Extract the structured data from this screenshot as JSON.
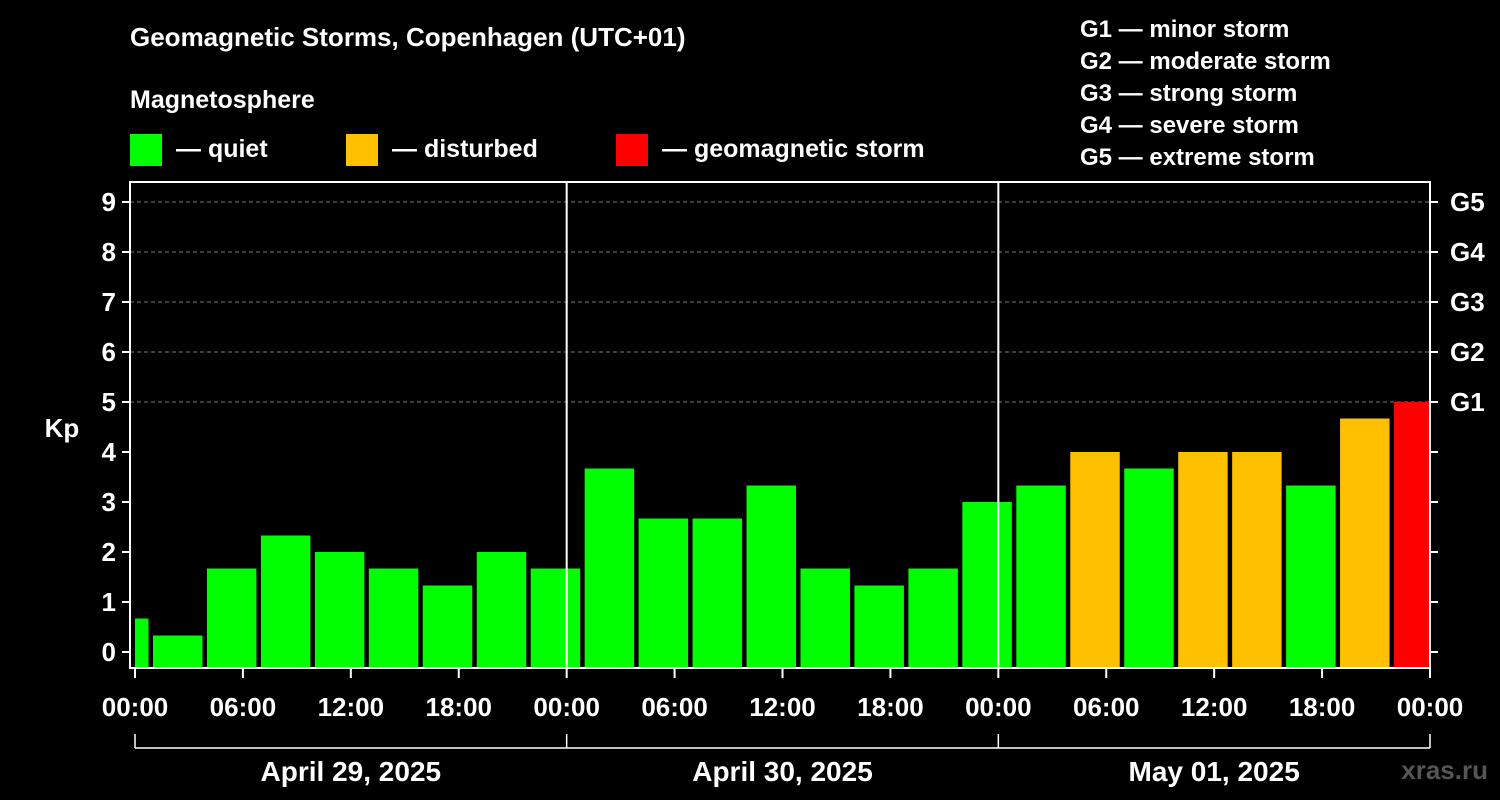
{
  "header": {
    "title": "Geomagnetic Storms, Copenhagen (UTC+01)",
    "subtitle": "Magnetosphere"
  },
  "legend": [
    {
      "label": "— quiet",
      "color": "#00ff00"
    },
    {
      "label": "— disturbed",
      "color": "#ffc000"
    },
    {
      "label": "— geomagnetic storm",
      "color": "#ff0000"
    }
  ],
  "storm_scale": [
    "G1 — minor storm",
    "G2 — moderate storm",
    "G3 — strong storm",
    "G4 — severe storm",
    "G5 — extreme storm"
  ],
  "watermark": "xras.ru",
  "chart_data": {
    "type": "bar",
    "ylabel": "Kp",
    "ylim": [
      0,
      9
    ],
    "y_ticks": [
      0,
      1,
      2,
      3,
      4,
      5,
      6,
      7,
      8,
      9
    ],
    "right_axis_ticks": [
      {
        "value": 5,
        "label": "G1"
      },
      {
        "value": 6,
        "label": "G2"
      },
      {
        "value": 7,
        "label": "G3"
      },
      {
        "value": 8,
        "label": "G4"
      },
      {
        "value": 9,
        "label": "G5"
      }
    ],
    "x_tick_labels": [
      "00:00",
      "06:00",
      "12:00",
      "18:00",
      "00:00",
      "06:00",
      "12:00",
      "18:00",
      "00:00",
      "06:00",
      "12:00",
      "18:00",
      "00:00"
    ],
    "days": [
      "April 29, 2025",
      "April 30, 2025",
      "May 01, 2025"
    ],
    "grid": "horizontal dashed at Kp 5–9",
    "bars": [
      {
        "start": "2025-04-29 00:00",
        "end": "2025-04-29 00:45",
        "kp": 0.67,
        "status": "quiet"
      },
      {
        "start": "2025-04-29 01:00",
        "end": "2025-04-29 03:45",
        "kp": 0.33,
        "status": "quiet"
      },
      {
        "start": "2025-04-29 04:00",
        "end": "2025-04-29 06:45",
        "kp": 1.67,
        "status": "quiet"
      },
      {
        "start": "2025-04-29 07:00",
        "end": "2025-04-29 09:45",
        "kp": 2.33,
        "status": "quiet"
      },
      {
        "start": "2025-04-29 10:00",
        "end": "2025-04-29 12:45",
        "kp": 2.0,
        "status": "quiet"
      },
      {
        "start": "2025-04-29 13:00",
        "end": "2025-04-29 15:45",
        "kp": 1.67,
        "status": "quiet"
      },
      {
        "start": "2025-04-29 16:00",
        "end": "2025-04-29 18:45",
        "kp": 1.33,
        "status": "quiet"
      },
      {
        "start": "2025-04-29 19:00",
        "end": "2025-04-29 21:45",
        "kp": 2.0,
        "status": "quiet"
      },
      {
        "start": "2025-04-29 22:00",
        "end": "2025-04-30 00:45",
        "kp": 1.67,
        "status": "quiet"
      },
      {
        "start": "2025-04-30 01:00",
        "end": "2025-04-30 03:45",
        "kp": 3.67,
        "status": "quiet"
      },
      {
        "start": "2025-04-30 04:00",
        "end": "2025-04-30 06:45",
        "kp": 2.67,
        "status": "quiet"
      },
      {
        "start": "2025-04-30 07:00",
        "end": "2025-04-30 09:45",
        "kp": 2.67,
        "status": "quiet"
      },
      {
        "start": "2025-04-30 10:00",
        "end": "2025-04-30 12:45",
        "kp": 3.33,
        "status": "quiet"
      },
      {
        "start": "2025-04-30 13:00",
        "end": "2025-04-30 15:45",
        "kp": 1.67,
        "status": "quiet"
      },
      {
        "start": "2025-04-30 16:00",
        "end": "2025-04-30 18:45",
        "kp": 1.33,
        "status": "quiet"
      },
      {
        "start": "2025-04-30 19:00",
        "end": "2025-04-30 21:45",
        "kp": 1.67,
        "status": "quiet"
      },
      {
        "start": "2025-04-30 22:00",
        "end": "2025-05-01 00:45",
        "kp": 3.0,
        "status": "quiet"
      },
      {
        "start": "2025-05-01 01:00",
        "end": "2025-05-01 03:45",
        "kp": 3.33,
        "status": "quiet"
      },
      {
        "start": "2025-05-01 04:00",
        "end": "2025-05-01 06:45",
        "kp": 4.0,
        "status": "disturbed"
      },
      {
        "start": "2025-05-01 07:00",
        "end": "2025-05-01 09:45",
        "kp": 3.67,
        "status": "quiet"
      },
      {
        "start": "2025-05-01 10:00",
        "end": "2025-05-01 12:45",
        "kp": 4.0,
        "status": "disturbed"
      },
      {
        "start": "2025-05-01 13:00",
        "end": "2025-05-01 15:45",
        "kp": 4.0,
        "status": "disturbed"
      },
      {
        "start": "2025-05-01 16:00",
        "end": "2025-05-01 18:45",
        "kp": 3.33,
        "status": "quiet"
      },
      {
        "start": "2025-05-01 19:00",
        "end": "2025-05-01 21:45",
        "kp": 4.67,
        "status": "disturbed"
      },
      {
        "start": "2025-05-01 22:00",
        "end": "2025-05-02 00:00",
        "kp": 5.0,
        "status": "storm"
      }
    ]
  }
}
